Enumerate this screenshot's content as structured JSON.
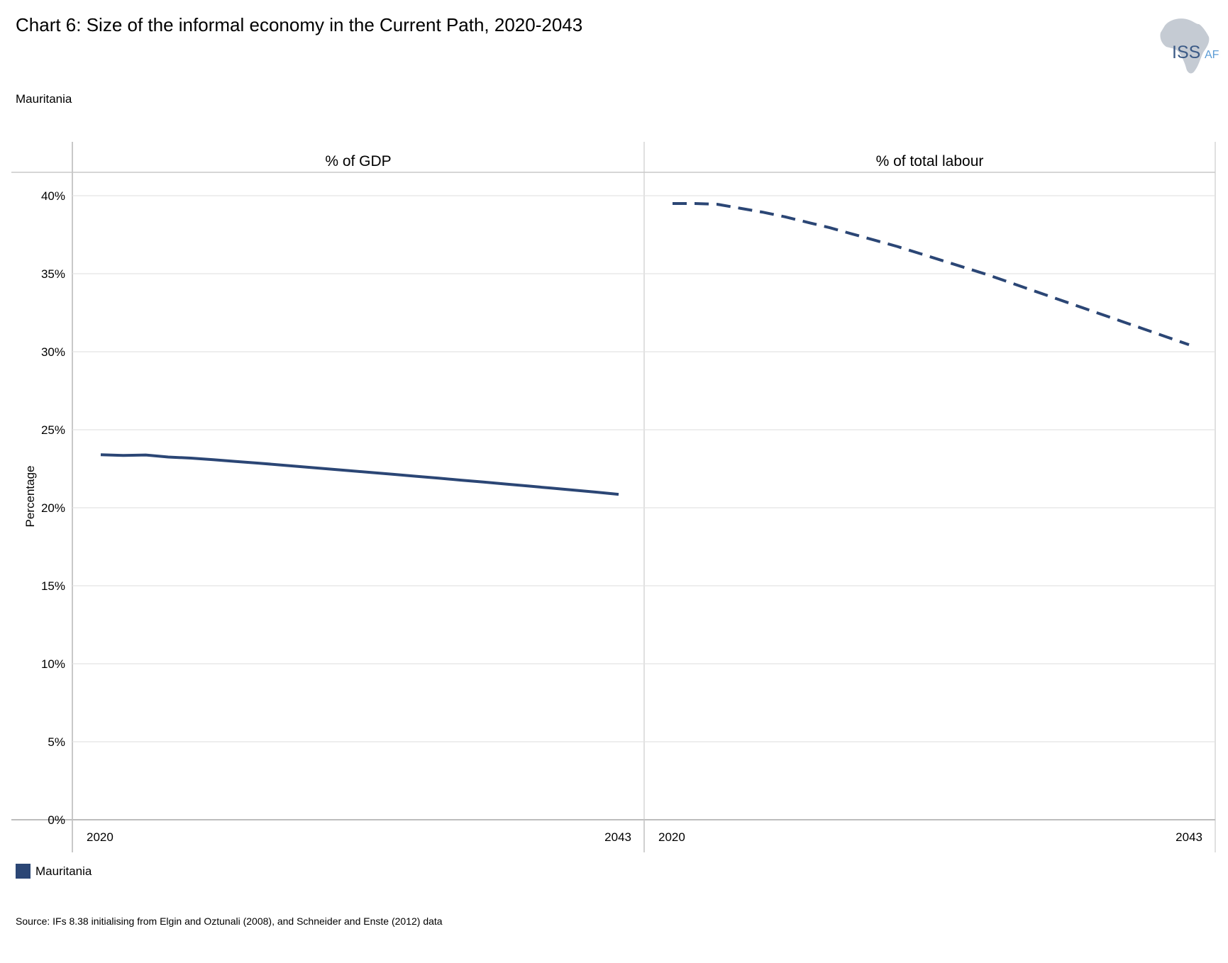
{
  "header": {
    "title": "Chart 6: Size of the informal economy in the Current Path, 2020-2043",
    "subtitle": "Mauritania",
    "logo_text": "ISS",
    "logo_suffix": "AFI"
  },
  "legend": {
    "label": "Mauritania",
    "color": "#2b4675"
  },
  "source": "Source: IFs 8.38 initialising  from Elgin and Oztunali (2008), and Schneider and Enste (2012) data",
  "chart_data": {
    "type": "line",
    "ylabel": "Percentage",
    "ylim": [
      0,
      41.5
    ],
    "yticks": [
      0,
      5,
      10,
      15,
      20,
      25,
      30,
      35,
      40
    ],
    "ytick_labels": [
      "0%",
      "5%",
      "10%",
      "15%",
      "20%",
      "25%",
      "30%",
      "35%",
      "40%"
    ],
    "grid": true,
    "legend_position": "bottom-left",
    "panels": [
      {
        "title": "% of GDP",
        "xlim": [
          2020,
          2043
        ],
        "xtick_labels": [
          "2020",
          "2043"
        ],
        "line_style": "solid",
        "series": [
          {
            "name": "Mauritania",
            "color": "#2b4675",
            "x": [
              2020,
              2021,
              2022,
              2023,
              2024,
              2025,
              2026,
              2027,
              2028,
              2029,
              2030,
              2031,
              2032,
              2033,
              2034,
              2035,
              2036,
              2037,
              2038,
              2039,
              2040,
              2041,
              2042,
              2043
            ],
            "values": [
              23.4,
              23.35,
              23.38,
              23.25,
              23.18,
              23.08,
              22.97,
              22.86,
              22.74,
              22.62,
              22.5,
              22.38,
              22.26,
              22.14,
              22.02,
              21.9,
              21.77,
              21.65,
              21.52,
              21.39,
              21.26,
              21.13,
              21.0,
              20.86
            ]
          }
        ]
      },
      {
        "title": "% of total labour",
        "xlim": [
          2020,
          2043
        ],
        "xtick_labels": [
          "2020",
          "2043"
        ],
        "line_style": "dashed",
        "series": [
          {
            "name": "Mauritania",
            "color": "#2b4675",
            "x": [
              2020,
              2021,
              2022,
              2023,
              2024,
              2025,
              2026,
              2027,
              2028,
              2029,
              2030,
              2031,
              2032,
              2033,
              2034,
              2035,
              2036,
              2037,
              2038,
              2039,
              2040,
              2041,
              2042,
              2043
            ],
            "values": [
              39.5,
              39.5,
              39.45,
              39.2,
              38.95,
              38.65,
              38.3,
              37.95,
              37.55,
              37.15,
              36.75,
              36.3,
              35.85,
              35.4,
              34.95,
              34.45,
              33.95,
              33.45,
              32.95,
              32.45,
              31.95,
              31.45,
              30.95,
              30.45
            ]
          }
        ]
      }
    ]
  }
}
